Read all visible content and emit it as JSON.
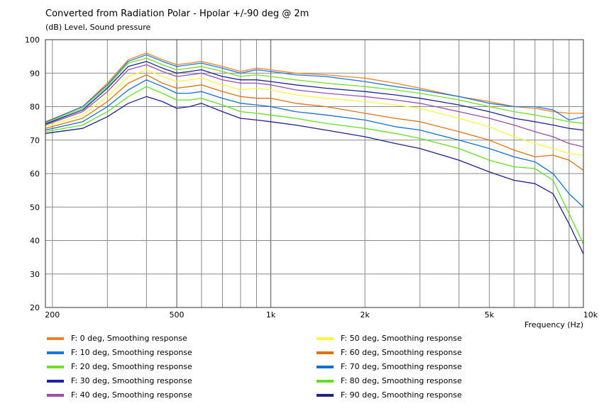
{
  "chart_data": {
    "type": "line",
    "title": "Converted from Radiation Polar - Hpolar +/-90 deg @ 2m",
    "subtitle": "(dB)  Level, Sound pressure",
    "xlabel": "Frequency  (Hz)",
    "xscale": "log",
    "xlim": [
      190,
      10000
    ],
    "ylim": [
      20,
      100
    ],
    "grid": true,
    "legend_position": "bottom",
    "x_tick_labels": [
      "200",
      "500",
      "1k",
      "2k",
      "5k",
      "10k"
    ],
    "x_tick_values": [
      200,
      500,
      1000,
      2000,
      5000,
      10000
    ],
    "y_ticks": [
      20,
      30,
      40,
      50,
      60,
      70,
      80,
      90,
      100
    ],
    "x": [
      190,
      250,
      300,
      350,
      400,
      450,
      500,
      550,
      600,
      700,
      800,
      900,
      1000,
      1200,
      1500,
      2000,
      2500,
      3000,
      4000,
      5000,
      6000,
      7000,
      8000,
      9000,
      10000
    ],
    "series": [
      {
        "name": "F: 0 deg, Smoothing response",
        "color": "#f08020",
        "values": [
          75.5,
          80,
          87,
          94,
          96,
          94,
          92.5,
          93,
          93.5,
          92,
          90.5,
          91.5,
          91,
          90,
          89.5,
          88.5,
          87,
          85.5,
          83,
          81.5,
          80,
          79.5,
          78.5,
          78,
          78
        ]
      },
      {
        "name": "F: 10 deg, Smoothing response",
        "color": "#1878e0",
        "values": [
          75.3,
          80,
          86.5,
          93.5,
          95.5,
          93.5,
          92,
          92.5,
          93,
          91.5,
          90,
          91,
          90.5,
          89.5,
          89,
          87.5,
          86,
          85,
          83,
          81,
          80,
          80,
          79,
          76,
          77
        ]
      },
      {
        "name": "F: 20 deg, Smoothing response",
        "color": "#70e020",
        "values": [
          75,
          79.5,
          86,
          93,
          94.5,
          92.5,
          91,
          91.5,
          92,
          90.5,
          89,
          89.5,
          89,
          88,
          87,
          86,
          85,
          84,
          82,
          80,
          78.5,
          77.5,
          76.5,
          75.5,
          75
        ]
      },
      {
        "name": "F: 30 deg, Smoothing response",
        "color": "#2020a0",
        "values": [
          74.8,
          79,
          85.5,
          92,
          93.5,
          91.5,
          90,
          90.5,
          91,
          89,
          88,
          88,
          87.5,
          86.5,
          85.5,
          84.5,
          83.5,
          82.5,
          80.5,
          78.5,
          76.5,
          75.5,
          74.5,
          73.5,
          73
        ]
      },
      {
        "name": "F: 40 deg, Smoothing response",
        "color": "#9a50a8",
        "values": [
          74.5,
          78.5,
          84.5,
          91,
          92.5,
          90.5,
          89,
          89.5,
          90,
          88,
          87,
          87,
          86.5,
          85,
          84,
          83,
          82,
          81,
          78.5,
          76.5,
          74.5,
          72.5,
          71,
          69,
          68
        ]
      },
      {
        "name": "F: 50 deg, Smoothing response",
        "color": "#f8f840",
        "values": [
          74,
          77.5,
          83,
          89,
          91,
          89,
          87.5,
          88,
          88.5,
          86.5,
          85,
          85.5,
          85,
          83.5,
          82.5,
          81.5,
          80.5,
          79.5,
          76.5,
          74,
          71,
          69,
          67.5,
          66,
          65.5
        ]
      },
      {
        "name": "F: 60 deg, Smoothing response",
        "color": "#e07010",
        "values": [
          73.5,
          76.5,
          81.5,
          87,
          89.5,
          87,
          85.5,
          86,
          86.5,
          84.5,
          83,
          82.5,
          82.5,
          81,
          80,
          78,
          76.5,
          75.5,
          72.5,
          70,
          67,
          65,
          65.5,
          64,
          61
        ]
      },
      {
        "name": "F: 70 deg, Smoothing response",
        "color": "#1070d0",
        "values": [
          73,
          75.5,
          80,
          85,
          88,
          86,
          84,
          84,
          84.5,
          82.5,
          81,
          80.5,
          80,
          78.5,
          77.5,
          76,
          74,
          73,
          70,
          67.5,
          65,
          63.5,
          60,
          54,
          50
        ]
      },
      {
        "name": "F: 80 deg, Smoothing response",
        "color": "#60e020",
        "values": [
          72.5,
          74.5,
          78.5,
          83,
          86,
          84,
          82,
          82,
          82.5,
          80.5,
          78.5,
          78,
          77.5,
          76.5,
          75,
          73.5,
          72,
          70.5,
          67.5,
          64,
          62,
          61.5,
          58,
          48,
          39
        ]
      },
      {
        "name": "F: 90 deg, Smoothing response",
        "color": "#202090",
        "values": [
          72,
          73.5,
          77,
          81,
          83,
          81.5,
          79.5,
          80,
          81,
          78.5,
          76.5,
          76,
          75.5,
          74.5,
          73,
          71,
          69,
          67.5,
          64,
          60.5,
          58,
          57,
          54,
          45,
          36
        ]
      }
    ]
  }
}
